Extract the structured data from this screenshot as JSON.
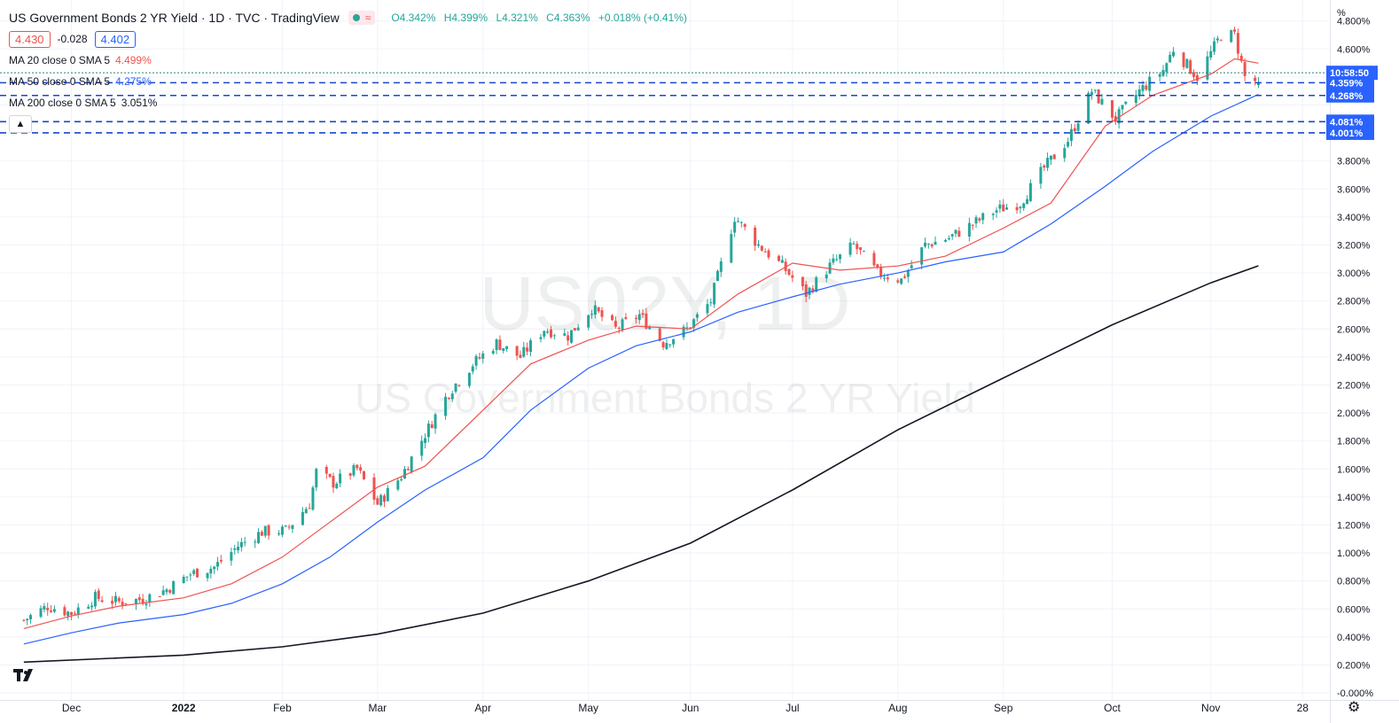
{
  "header": {
    "title": "US Government Bonds 2 YR Yield · 1D · TVC · TradingView",
    "badge": "≈",
    "ohlc": [
      "O4.342%",
      "H4.399%",
      "L4.321%",
      "C4.363%",
      "+0.018% (+0.41%)"
    ],
    "bid": "4.430",
    "spread": "-0.028",
    "ask": "4.402"
  },
  "indicators": [
    {
      "label": "MA 20 close 0 SMA 5",
      "value": "4.499%",
      "color": "#ef5350"
    },
    {
      "label": "MA 50 close 0 SMA 5",
      "value": "4.275%",
      "color": "#2962ff"
    },
    {
      "label": "MA 200 close 0 SMA 5",
      "value": "3.051%",
      "color": "#131722"
    }
  ],
  "collapse_icon": "chevron-up-icon",
  "watermark": {
    "symbol": "US02Y, 1D",
    "name": "US Government Bonds 2 YR Yield"
  },
  "countdown": "10:58:50",
  "price_axis": {
    "unit": "%"
  },
  "chart_data": {
    "type": "candlestick",
    "title": "US Government Bonds 2 YR Yield",
    "symbol": "US02Y",
    "interval": "1D",
    "yunit": "%",
    "ylim": [
      -0.05,
      4.95
    ],
    "yticks": [
      0.0,
      0.2,
      0.4,
      0.6,
      0.8,
      1.0,
      1.2,
      1.4,
      1.6,
      1.8,
      2.0,
      2.2,
      2.4,
      2.6,
      2.8,
      3.0,
      3.2,
      3.4,
      3.6,
      3.8,
      4.0,
      4.2,
      4.4,
      4.6,
      4.8
    ],
    "ytick_labels": [
      "-0.000%",
      "0.200%",
      "0.400%",
      "0.600%",
      "0.800%",
      "1.000%",
      "1.200%",
      "1.400%",
      "1.600%",
      "1.800%",
      "2.000%",
      "2.200%",
      "2.400%",
      "2.600%",
      "2.800%",
      "3.000%",
      "3.200%",
      "3.400%",
      "3.600%",
      "3.800%",
      "",
      "",
      "",
      "4.600%",
      "4.800%"
    ],
    "xticks": [
      {
        "label": "Dec",
        "date": "2021-12-01"
      },
      {
        "label": "2022",
        "date": "2022-01-03",
        "bold": true
      },
      {
        "label": "Feb",
        "date": "2022-02-01"
      },
      {
        "label": "Mar",
        "date": "2022-03-01"
      },
      {
        "label": "Apr",
        "date": "2022-04-01"
      },
      {
        "label": "May",
        "date": "2022-05-02"
      },
      {
        "label": "Jun",
        "date": "2022-06-01"
      },
      {
        "label": "Jul",
        "date": "2022-07-01"
      },
      {
        "label": "Aug",
        "date": "2022-08-01"
      },
      {
        "label": "Sep",
        "date": "2022-09-01"
      },
      {
        "label": "Oct",
        "date": "2022-10-03"
      },
      {
        "label": "Nov",
        "date": "2022-11-01"
      },
      {
        "label": "28",
        "date": "2022-11-28"
      }
    ],
    "first_date": "2021-11-17",
    "last_date": "2022-11-15",
    "close_series": [
      [
        "2021-11-17",
        0.52
      ],
      [
        "2021-11-24",
        0.62
      ],
      [
        "2021-12-01",
        0.57
      ],
      [
        "2021-12-08",
        0.68
      ],
      [
        "2021-12-15",
        0.65
      ],
      [
        "2021-12-22",
        0.67
      ],
      [
        "2021-12-29",
        0.74
      ],
      [
        "2022-01-05",
        0.85
      ],
      [
        "2022-01-12",
        0.9
      ],
      [
        "2022-01-19",
        1.05
      ],
      [
        "2022-01-26",
        1.15
      ],
      [
        "2022-02-02",
        1.16
      ],
      [
        "2022-02-09",
        1.35
      ],
      [
        "2022-02-11",
        1.58
      ],
      [
        "2022-02-16",
        1.5
      ],
      [
        "2022-02-23",
        1.6
      ],
      [
        "2022-03-01",
        1.35
      ],
      [
        "2022-03-08",
        1.55
      ],
      [
        "2022-03-15",
        1.85
      ],
      [
        "2022-03-22",
        2.15
      ],
      [
        "2022-03-29",
        2.35
      ],
      [
        "2022-04-05",
        2.5
      ],
      [
        "2022-04-12",
        2.4
      ],
      [
        "2022-04-19",
        2.6
      ],
      [
        "2022-04-26",
        2.55
      ],
      [
        "2022-05-03",
        2.75
      ],
      [
        "2022-05-10",
        2.6
      ],
      [
        "2022-05-17",
        2.7
      ],
      [
        "2022-05-24",
        2.5
      ],
      [
        "2022-05-31",
        2.6
      ],
      [
        "2022-06-07",
        2.8
      ],
      [
        "2022-06-14",
        3.4
      ],
      [
        "2022-06-21",
        3.2
      ],
      [
        "2022-06-28",
        3.05
      ],
      [
        "2022-07-05",
        2.85
      ],
      [
        "2022-07-12",
        3.05
      ],
      [
        "2022-07-19",
        3.2
      ],
      [
        "2022-07-26",
        3.0
      ],
      [
        "2022-08-02",
        2.95
      ],
      [
        "2022-08-09",
        3.2
      ],
      [
        "2022-08-16",
        3.25
      ],
      [
        "2022-08-23",
        3.35
      ],
      [
        "2022-08-30",
        3.45
      ],
      [
        "2022-09-06",
        3.5
      ],
      [
        "2022-09-13",
        3.75
      ],
      [
        "2022-09-20",
        3.95
      ],
      [
        "2022-09-27",
        4.3
      ],
      [
        "2022-10-04",
        4.1
      ],
      [
        "2022-10-11",
        4.3
      ],
      [
        "2022-10-18",
        4.45
      ],
      [
        "2022-10-21",
        4.6
      ],
      [
        "2022-10-28",
        4.4
      ],
      [
        "2022-11-04",
        4.7
      ],
      [
        "2022-11-08",
        4.7
      ],
      [
        "2022-11-11",
        4.4
      ],
      [
        "2022-11-15",
        4.363
      ]
    ],
    "series": [
      {
        "name": "MA 20 close 0 SMA 5",
        "color": "#ef5350",
        "points": [
          [
            "2021-11-17",
            0.46
          ],
          [
            "2021-12-01",
            0.55
          ],
          [
            "2021-12-15",
            0.62
          ],
          [
            "2022-01-03",
            0.68
          ],
          [
            "2022-01-17",
            0.78
          ],
          [
            "2022-02-01",
            0.97
          ],
          [
            "2022-02-15",
            1.22
          ],
          [
            "2022-03-01",
            1.47
          ],
          [
            "2022-03-15",
            1.62
          ],
          [
            "2022-04-01",
            2.02
          ],
          [
            "2022-04-15",
            2.35
          ],
          [
            "2022-05-02",
            2.52
          ],
          [
            "2022-05-16",
            2.62
          ],
          [
            "2022-06-01",
            2.6
          ],
          [
            "2022-06-15",
            2.85
          ],
          [
            "2022-07-01",
            3.07
          ],
          [
            "2022-07-15",
            3.02
          ],
          [
            "2022-08-01",
            3.05
          ],
          [
            "2022-08-15",
            3.12
          ],
          [
            "2022-09-01",
            3.32
          ],
          [
            "2022-09-15",
            3.5
          ],
          [
            "2022-10-01",
            4.05
          ],
          [
            "2022-10-15",
            4.27
          ],
          [
            "2022-11-01",
            4.42
          ],
          [
            "2022-11-08",
            4.53
          ],
          [
            "2022-11-15",
            4.499
          ]
        ]
      },
      {
        "name": "MA 50 close 0 SMA 5",
        "color": "#2962ff",
        "points": [
          [
            "2021-11-17",
            0.35
          ],
          [
            "2021-12-01",
            0.43
          ],
          [
            "2021-12-15",
            0.5
          ],
          [
            "2022-01-03",
            0.56
          ],
          [
            "2022-01-17",
            0.64
          ],
          [
            "2022-02-01",
            0.78
          ],
          [
            "2022-02-15",
            0.97
          ],
          [
            "2022-03-01",
            1.22
          ],
          [
            "2022-03-15",
            1.45
          ],
          [
            "2022-04-01",
            1.68
          ],
          [
            "2022-04-15",
            2.02
          ],
          [
            "2022-05-02",
            2.32
          ],
          [
            "2022-05-16",
            2.48
          ],
          [
            "2022-06-01",
            2.58
          ],
          [
            "2022-06-15",
            2.72
          ],
          [
            "2022-07-01",
            2.83
          ],
          [
            "2022-07-15",
            2.92
          ],
          [
            "2022-08-01",
            3.0
          ],
          [
            "2022-08-15",
            3.08
          ],
          [
            "2022-09-01",
            3.15
          ],
          [
            "2022-09-15",
            3.35
          ],
          [
            "2022-10-01",
            3.62
          ],
          [
            "2022-10-15",
            3.87
          ],
          [
            "2022-11-01",
            4.12
          ],
          [
            "2022-11-15",
            4.275
          ]
        ]
      },
      {
        "name": "MA 200 close 0 SMA 5",
        "color": "#131722",
        "points": [
          [
            "2021-11-17",
            0.22
          ],
          [
            "2022-01-03",
            0.27
          ],
          [
            "2022-02-01",
            0.33
          ],
          [
            "2022-03-01",
            0.42
          ],
          [
            "2022-04-01",
            0.57
          ],
          [
            "2022-05-02",
            0.8
          ],
          [
            "2022-06-01",
            1.07
          ],
          [
            "2022-07-01",
            1.45
          ],
          [
            "2022-08-01",
            1.88
          ],
          [
            "2022-09-01",
            2.25
          ],
          [
            "2022-10-03",
            2.63
          ],
          [
            "2022-11-01",
            2.93
          ],
          [
            "2022-11-15",
            3.051
          ]
        ]
      }
    ],
    "horizontal_lines": [
      {
        "value": 4.359,
        "label": "4.359%",
        "style": "dashed"
      },
      {
        "value": 4.268,
        "label": "4.268%",
        "style": "dashed"
      },
      {
        "value": 4.081,
        "label": "4.081%",
        "style": "dashed"
      },
      {
        "value": 4.001,
        "label": "4.001%",
        "style": "dashed"
      }
    ],
    "last_price": {
      "value": 4.43,
      "label": "10:58:50",
      "style": "dotted"
    },
    "candle_colors": {
      "up": "#26a69a",
      "down": "#ef5350"
    },
    "grid": true,
    "legend_position": "top-left"
  }
}
